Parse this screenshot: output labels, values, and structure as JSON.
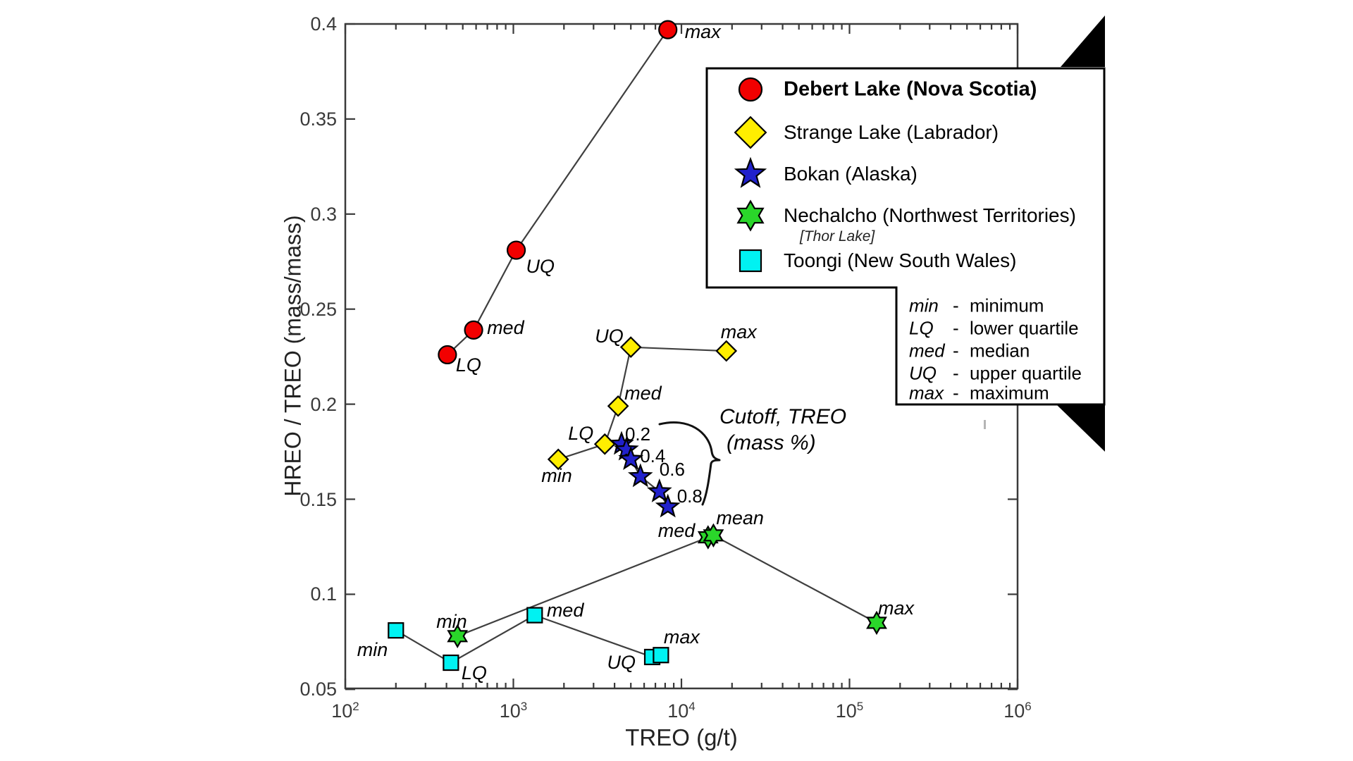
{
  "axes": {
    "xlabel": "TREO (g/t)",
    "ylabel": "HREO / TREO (mass/mass)",
    "x_scale": "log",
    "x_tick_exponents": [
      2,
      3,
      4,
      5,
      6
    ],
    "x_range": [
      100,
      1000000
    ],
    "y_ticks": [
      "0.4",
      "0.35",
      "0.3",
      "0.25",
      "0.2",
      "0.15",
      "0.1",
      "0.05"
    ],
    "y_tick_values": [
      0.4,
      0.35,
      0.3,
      0.25,
      0.2,
      0.15,
      0.1,
      0.05
    ],
    "y_range": [
      0.05,
      0.4
    ],
    "grid": false
  },
  "legend": {
    "position": "top-right",
    "entries": [
      {
        "label": "Debert Lake (Nova Scotia)",
        "marker": "circle",
        "color": "#f20000",
        "bold": true,
        "sublabel": ""
      },
      {
        "label": "Strange Lake (Labrador)",
        "marker": "diamond",
        "color": "#ffee00",
        "bold": false,
        "sublabel": ""
      },
      {
        "label": "Bokan (Alaska)",
        "marker": "star5",
        "color": "#2121cc",
        "bold": false,
        "sublabel": ""
      },
      {
        "label": "Nechalcho (Northwest Territories)",
        "marker": "star6",
        "color": "#2ad62a",
        "bold": false,
        "sublabel": "[Thor Lake]"
      },
      {
        "label": "Toongi (New South Wales)",
        "marker": "square",
        "color": "#00f2f2",
        "bold": false,
        "sublabel": ""
      }
    ],
    "definitions": [
      {
        "abbr": "min",
        "dash": "-",
        "meaning": "minimum"
      },
      {
        "abbr": "LQ",
        "dash": "-",
        "meaning": "lower quartile"
      },
      {
        "abbr": "med",
        "dash": "-",
        "meaning": "median"
      },
      {
        "abbr": "UQ",
        "dash": "-",
        "meaning": "upper quartile"
      },
      {
        "abbr": "max",
        "dash": "-",
        "meaning": "maximum"
      }
    ]
  },
  "annotation": {
    "line1": "Cutoff, TREO",
    "line2": "(mass %)"
  },
  "chart_data": {
    "type": "scatter",
    "title": "",
    "xlabel": "TREO (g/t)",
    "ylabel": "HREO / TREO (mass/mass)",
    "x_scale": "log",
    "xlim": [
      100,
      1000000
    ],
    "ylim": [
      0.05,
      0.4
    ],
    "series": [
      {
        "name": "Debert Lake (Nova Scotia)",
        "marker": "circle",
        "color": "#f20000",
        "connected": true,
        "points": [
          {
            "label": "LQ",
            "x": 405,
            "y": 0.226,
            "label_offset": [
              12,
              2
            ]
          },
          {
            "label": "med",
            "x": 580,
            "y": 0.239,
            "label_offset": [
              19,
              -16
            ]
          },
          {
            "label": "UQ",
            "x": 1040,
            "y": 0.281,
            "label_offset": [
              14,
              10
            ]
          },
          {
            "label": "max",
            "x": 8300,
            "y": 0.397,
            "label_offset": [
              24,
              -10
            ]
          }
        ]
      },
      {
        "name": "Strange Lake (Labrador)",
        "marker": "diamond",
        "color": "#ffee00",
        "connected": true,
        "points": [
          {
            "label": "min",
            "x": 1850,
            "y": 0.171,
            "label_offset": [
              -24,
              10
            ]
          },
          {
            "label": "LQ",
            "x": 3500,
            "y": 0.179,
            "label_offset": [
              -52,
              -28
            ]
          },
          {
            "label": "med",
            "x": 4200,
            "y": 0.199,
            "label_offset": [
              9,
              -31
            ]
          },
          {
            "label": "UQ",
            "x": 5000,
            "y": 0.23,
            "label_offset": [
              -51,
              -29
            ]
          },
          {
            "label": "max",
            "x": 18500,
            "y": 0.228,
            "label_offset": [
              -8,
              -40
            ]
          }
        ]
      },
      {
        "name": "Bokan (Alaska)",
        "marker": "star5",
        "color": "#2121cc",
        "connected": true,
        "labels_upright": true,
        "points": [
          {
            "label": "0.2",
            "x": 4400,
            "y": 0.179,
            "label_offset": [
              5,
              -27
            ]
          },
          {
            "label": "",
            "x": 4700,
            "y": 0.176,
            "label_offset": [
              0,
              0
            ]
          },
          {
            "label": "0.4",
            "x": 5000,
            "y": 0.171,
            "label_offset": [
              13,
              -18
            ]
          },
          {
            "label": "0.6",
            "x": 5700,
            "y": 0.162,
            "label_offset": [
              27,
              -23
            ]
          },
          {
            "label": "",
            "x": 7400,
            "y": 0.154,
            "label_offset": [
              0,
              0
            ]
          },
          {
            "label": "0.8",
            "x": 8300,
            "y": 0.146,
            "label_offset": [
              13,
              -28
            ]
          }
        ]
      },
      {
        "name": "Nechalcho (Northwest Territories) [Thor Lake]",
        "marker": "star6",
        "color": "#2ad62a",
        "connected": true,
        "points": [
          {
            "label": "min",
            "x": 465,
            "y": 0.078,
            "label_offset": [
              -30,
              -34
            ]
          },
          {
            "label": "med",
            "x": 14400,
            "y": 0.13,
            "label_offset": [
              -71,
              -22
            ]
          },
          {
            "label": "mean",
            "x": 15500,
            "y": 0.131,
            "label_offset": [
              4,
              -38
            ]
          },
          {
            "label": "max",
            "x": 145000,
            "y": 0.085,
            "label_offset": [
              2,
              -34
            ]
          }
        ]
      },
      {
        "name": "Toongi (New South Wales)",
        "marker": "square",
        "color": "#00f2f2",
        "connected": true,
        "points": [
          {
            "label": "min",
            "x": 200,
            "y": 0.081,
            "label_offset": [
              -55,
              14
            ]
          },
          {
            "label": "LQ",
            "x": 425,
            "y": 0.064,
            "label_offset": [
              15,
              1
            ]
          },
          {
            "label": "med",
            "x": 1340,
            "y": 0.089,
            "label_offset": [
              17,
              -20
            ]
          },
          {
            "label": "UQ",
            "x": 6700,
            "y": 0.067,
            "label_offset": [
              -64,
              -5
            ]
          },
          {
            "label": "max",
            "x": 7550,
            "y": 0.068,
            "label_offset": [
              4,
              -39
            ]
          }
        ]
      }
    ],
    "annotations": [
      {
        "text": "Cutoff, TREO (mass %)",
        "target_series": "Bokan (Alaska)"
      }
    ],
    "legend_position": "top-right"
  },
  "colors": {
    "line": "#3f3f3f",
    "axis": "#3a3a3a",
    "marker_stroke": "#000000",
    "legend_border": "#000000",
    "background": "#ffffff"
  }
}
